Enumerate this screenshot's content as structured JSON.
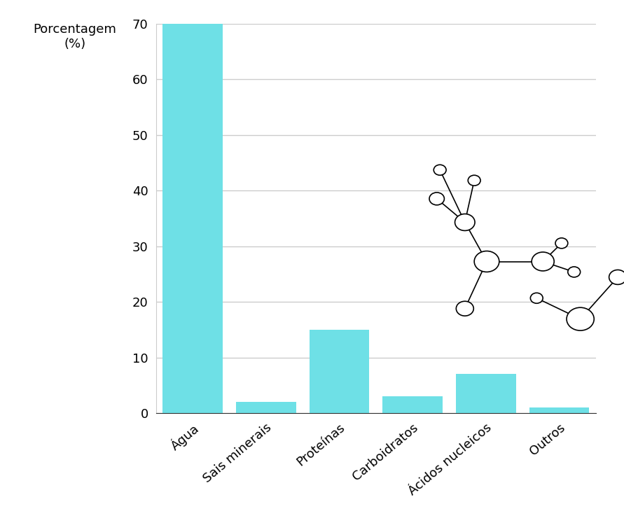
{
  "chart_data": {
    "type": "bar",
    "y_label": "Porcentagem\n(%)",
    "categories": [
      "Água",
      "Sais minerais",
      "Proteínas",
      "Carboidratos",
      "Ácidos nucleicos",
      "Outros"
    ],
    "values": [
      70,
      2,
      15,
      3,
      7,
      1
    ],
    "color": "#6ee0e6",
    "ylim": [
      0,
      70
    ],
    "yticks": [
      0,
      10,
      20,
      30,
      40,
      50,
      60,
      70
    ],
    "grid": true
  }
}
